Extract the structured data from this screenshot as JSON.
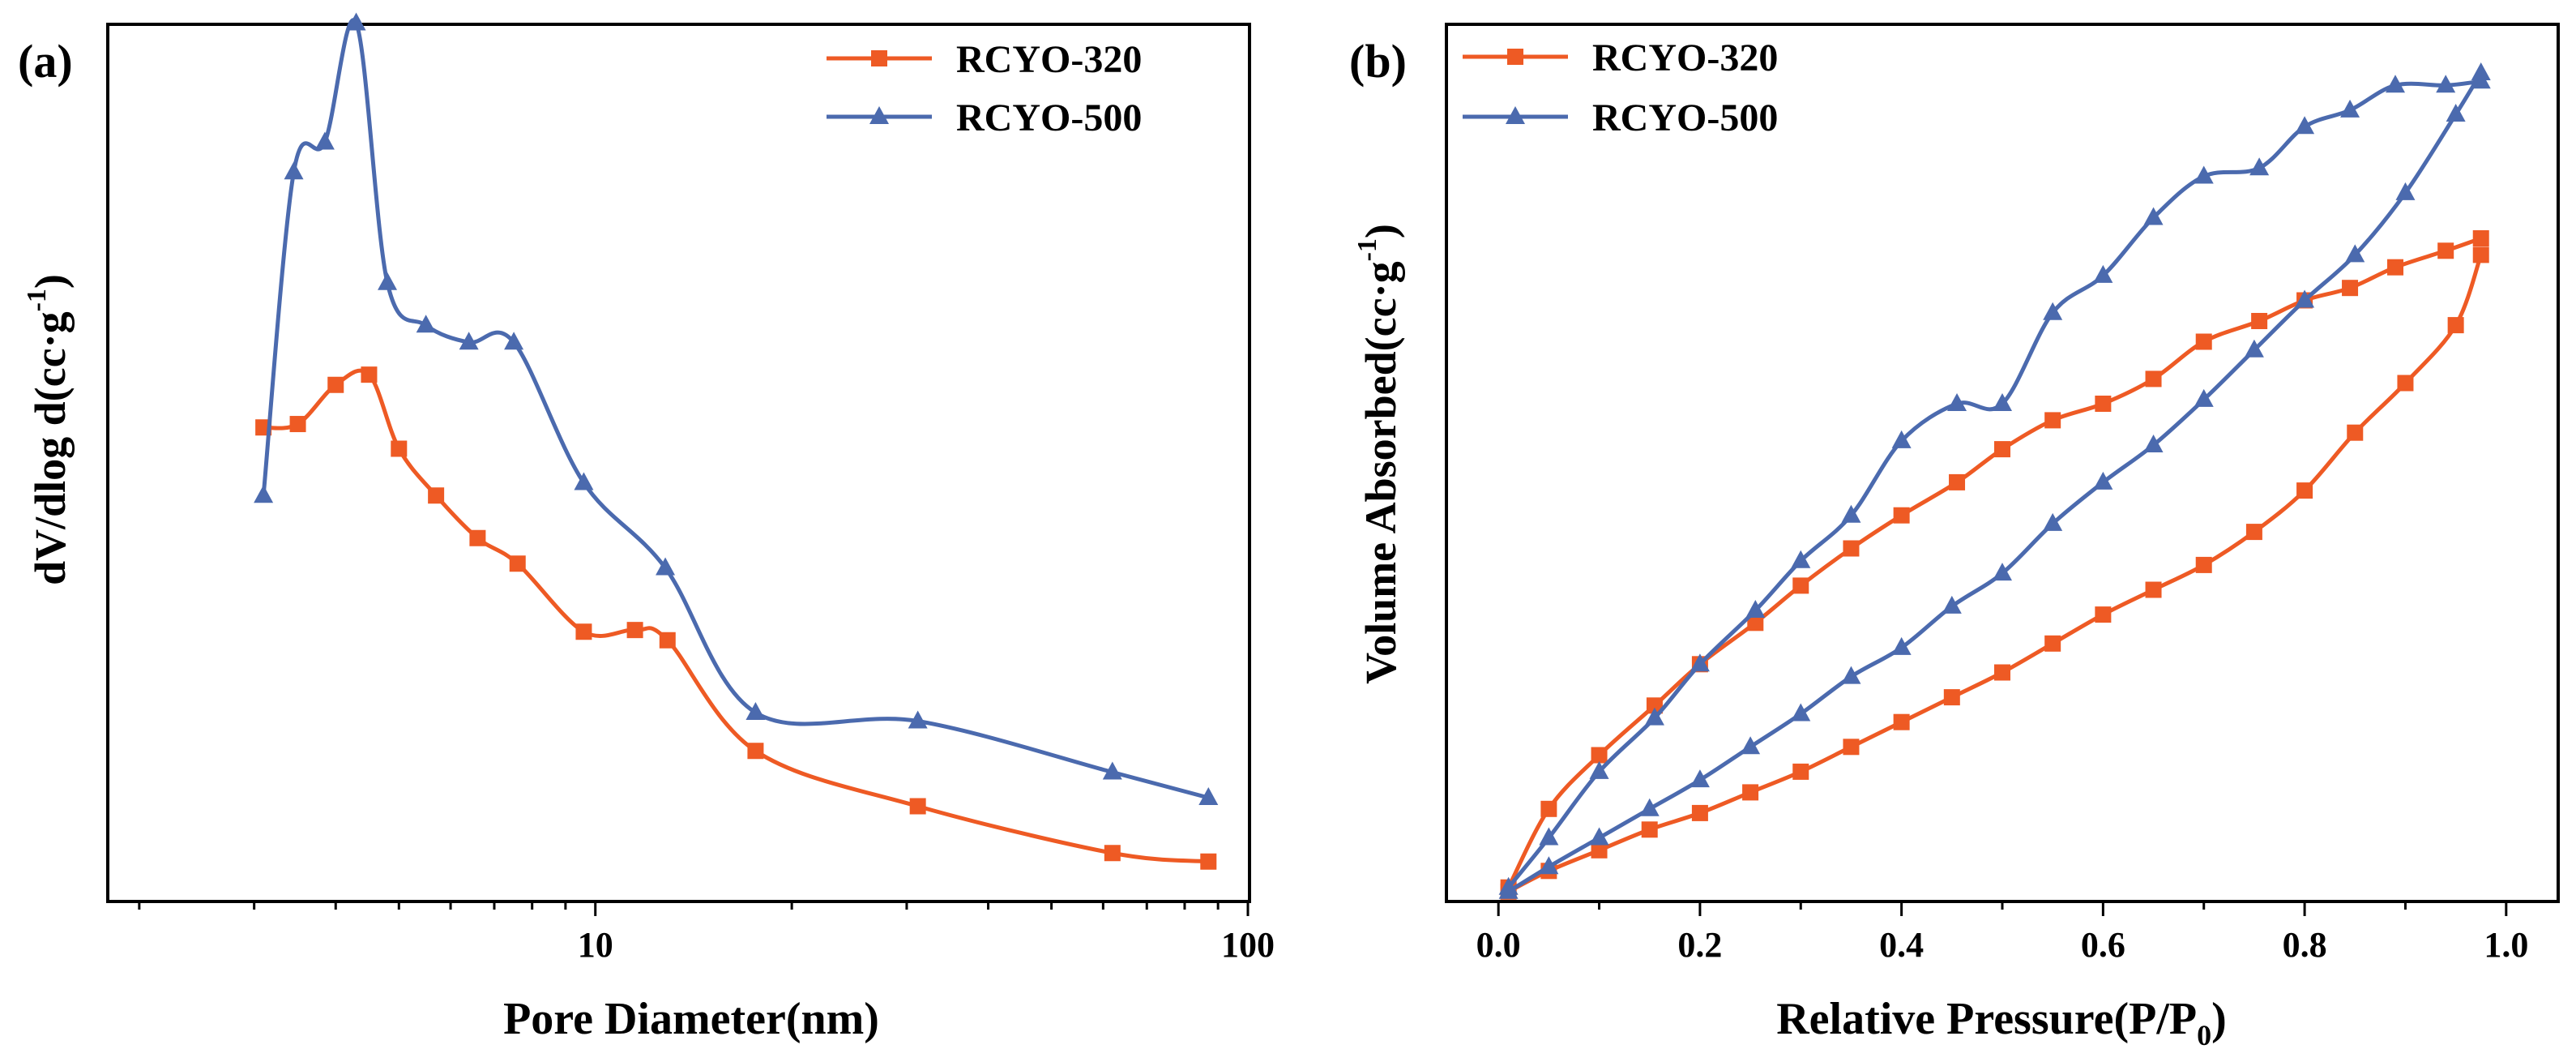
{
  "colors": {
    "series_a": "#EE5A24",
    "series_b": "#4B6AAE",
    "axis": "#000000"
  },
  "chart_data": [
    {
      "panel": "(a)",
      "type": "line",
      "xscale": "log",
      "xlabel": "Pore Diameter(nm)",
      "ylabel_main": "dV/dlog d(cc·g",
      "ylabel_sup": "-1",
      "ylabel_tail": ")",
      "xlim": [
        1.8,
        100
      ],
      "ylim": [
        0,
        1
      ],
      "xticks": [
        {
          "value": 10,
          "label": "10"
        },
        {
          "value": 100,
          "label": "100"
        }
      ],
      "minor_xticks": [
        2,
        3,
        4,
        5,
        6,
        7,
        8,
        9,
        20,
        30,
        40,
        50,
        60,
        70,
        80,
        90
      ],
      "y_ticks_labeled": false,
      "legend_position": "top-right",
      "series": [
        {
          "name": "RCYO-320",
          "marker": "square",
          "x": [
            3.1,
            3.5,
            4.0,
            4.5,
            5.0,
            5.7,
            6.6,
            7.6,
            9.6,
            11.5,
            12.9,
            17.6,
            31.2,
            62.0,
            87.0
          ],
          "y": [
            0.555,
            0.559,
            0.605,
            0.617,
            0.53,
            0.475,
            0.425,
            0.395,
            0.315,
            0.317,
            0.305,
            0.175,
            0.11,
            0.055,
            0.045
          ]
        },
        {
          "name": "RCYO-500",
          "marker": "triangle",
          "x": [
            3.1,
            3.45,
            3.85,
            4.3,
            4.8,
            5.5,
            6.4,
            7.5,
            9.6,
            12.8,
            17.6,
            31.2,
            62.0,
            87.0
          ],
          "y": [
            0.475,
            0.855,
            0.89,
            1.03,
            0.725,
            0.675,
            0.655,
            0.655,
            0.49,
            0.39,
            0.22,
            0.21,
            0.15,
            0.12
          ]
        }
      ]
    },
    {
      "panel": "(b)",
      "type": "line",
      "xlabel_main": "Relative Pressure(P/P",
      "xlabel_sub": "0",
      "xlabel_tail": ")",
      "ylabel_main": "Volume Absorbed(cc·g",
      "ylabel_sup": "-1",
      "ylabel_tail": ")",
      "xlim": [
        -0.05,
        1.05
      ],
      "ylim": [
        0,
        1
      ],
      "xticks": [
        {
          "value": 0.0,
          "label": "0.0"
        },
        {
          "value": 0.2,
          "label": "0.2"
        },
        {
          "value": 0.4,
          "label": "0.4"
        },
        {
          "value": 0.6,
          "label": "0.6"
        },
        {
          "value": 0.8,
          "label": "0.8"
        },
        {
          "value": 1.0,
          "label": "1.0"
        }
      ],
      "minor_xticks": [
        0.1,
        0.3,
        0.5,
        0.7,
        0.9
      ],
      "y_ticks_labeled": false,
      "legend_position": "top-left",
      "series": [
        {
          "name": "RCYO-320",
          "marker": "square",
          "branches": [
            {
              "branch": "adsorption",
              "x": [
                0.01,
                0.05,
                0.1,
                0.15,
                0.2,
                0.25,
                0.3,
                0.35,
                0.4,
                0.45,
                0.5,
                0.55,
                0.6,
                0.65,
                0.7,
                0.75,
                0.8,
                0.85,
                0.9,
                0.95,
                0.975
              ],
              "y": [
                0.01,
                0.035,
                0.06,
                0.085,
                0.105,
                0.13,
                0.155,
                0.185,
                0.215,
                0.245,
                0.275,
                0.31,
                0.345,
                0.375,
                0.405,
                0.445,
                0.495,
                0.565,
                0.625,
                0.695,
                0.78
              ]
            },
            {
              "branch": "desorption",
              "x": [
                0.975,
                0.94,
                0.89,
                0.845,
                0.8,
                0.755,
                0.7,
                0.65,
                0.6,
                0.55,
                0.5,
                0.455,
                0.4,
                0.35,
                0.3,
                0.255,
                0.2,
                0.155,
                0.1,
                0.05,
                0.01
              ],
              "y": [
                0.8,
                0.785,
                0.765,
                0.74,
                0.725,
                0.7,
                0.675,
                0.63,
                0.6,
                0.58,
                0.545,
                0.505,
                0.465,
                0.425,
                0.38,
                0.335,
                0.285,
                0.235,
                0.175,
                0.11,
                0.015
              ]
            }
          ]
        },
        {
          "name": "RCYO-500",
          "marker": "triangle",
          "branches": [
            {
              "branch": "adsorption",
              "x": [
                0.01,
                0.05,
                0.1,
                0.15,
                0.2,
                0.25,
                0.3,
                0.35,
                0.4,
                0.45,
                0.5,
                0.55,
                0.6,
                0.65,
                0.7,
                0.75,
                0.8,
                0.85,
                0.9,
                0.95,
                0.975
              ],
              "y": [
                0.01,
                0.04,
                0.075,
                0.11,
                0.145,
                0.185,
                0.225,
                0.27,
                0.305,
                0.355,
                0.395,
                0.455,
                0.505,
                0.55,
                0.605,
                0.665,
                0.725,
                0.78,
                0.855,
                0.95,
                1.0
              ]
            },
            {
              "branch": "desorption",
              "x": [
                0.975,
                0.94,
                0.89,
                0.845,
                0.8,
                0.755,
                0.7,
                0.65,
                0.6,
                0.55,
                0.5,
                0.455,
                0.4,
                0.35,
                0.3,
                0.255,
                0.2,
                0.155,
                0.1,
                0.05,
                0.01
              ],
              "y": [
                0.99,
                0.985,
                0.985,
                0.955,
                0.935,
                0.885,
                0.875,
                0.825,
                0.755,
                0.71,
                0.6,
                0.6,
                0.555,
                0.465,
                0.41,
                0.35,
                0.285,
                0.22,
                0.155,
                0.075,
                0.015
              ]
            }
          ]
        }
      ]
    }
  ]
}
